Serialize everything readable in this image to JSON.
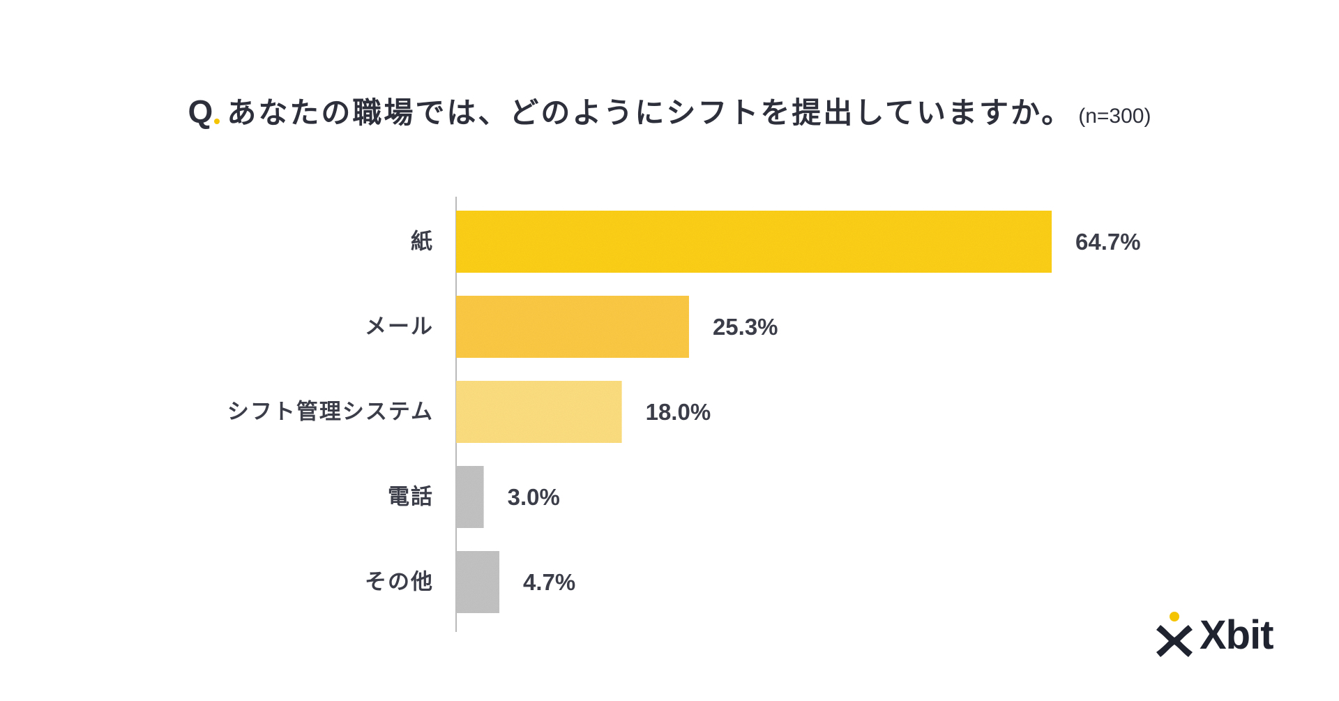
{
  "title": {
    "q": "Q",
    "text": "あなたの職場では、どのようにシフトを提出していますか。",
    "n": "(n=300)"
  },
  "chart_data": {
    "type": "bar",
    "orientation": "horizontal",
    "categories": [
      "紙",
      "メール",
      "シフト管理システム",
      "電話",
      "その他"
    ],
    "values": [
      64.7,
      25.3,
      18.0,
      3.0,
      4.7
    ],
    "value_labels": [
      "64.7%",
      "25.3%",
      "18.0%",
      "3.0%",
      "4.7%"
    ],
    "colors": [
      "#fed11c",
      "#fecb45",
      "#fee080",
      "#c4c4c4",
      "#c4c4c4"
    ],
    "xlim": [
      0,
      100
    ],
    "grid": false,
    "legend": "none"
  },
  "logo": {
    "text": "Xbit",
    "icon": "xbit-person-icon",
    "accent_color": "#f5c400",
    "text_color": "#1f2330"
  }
}
